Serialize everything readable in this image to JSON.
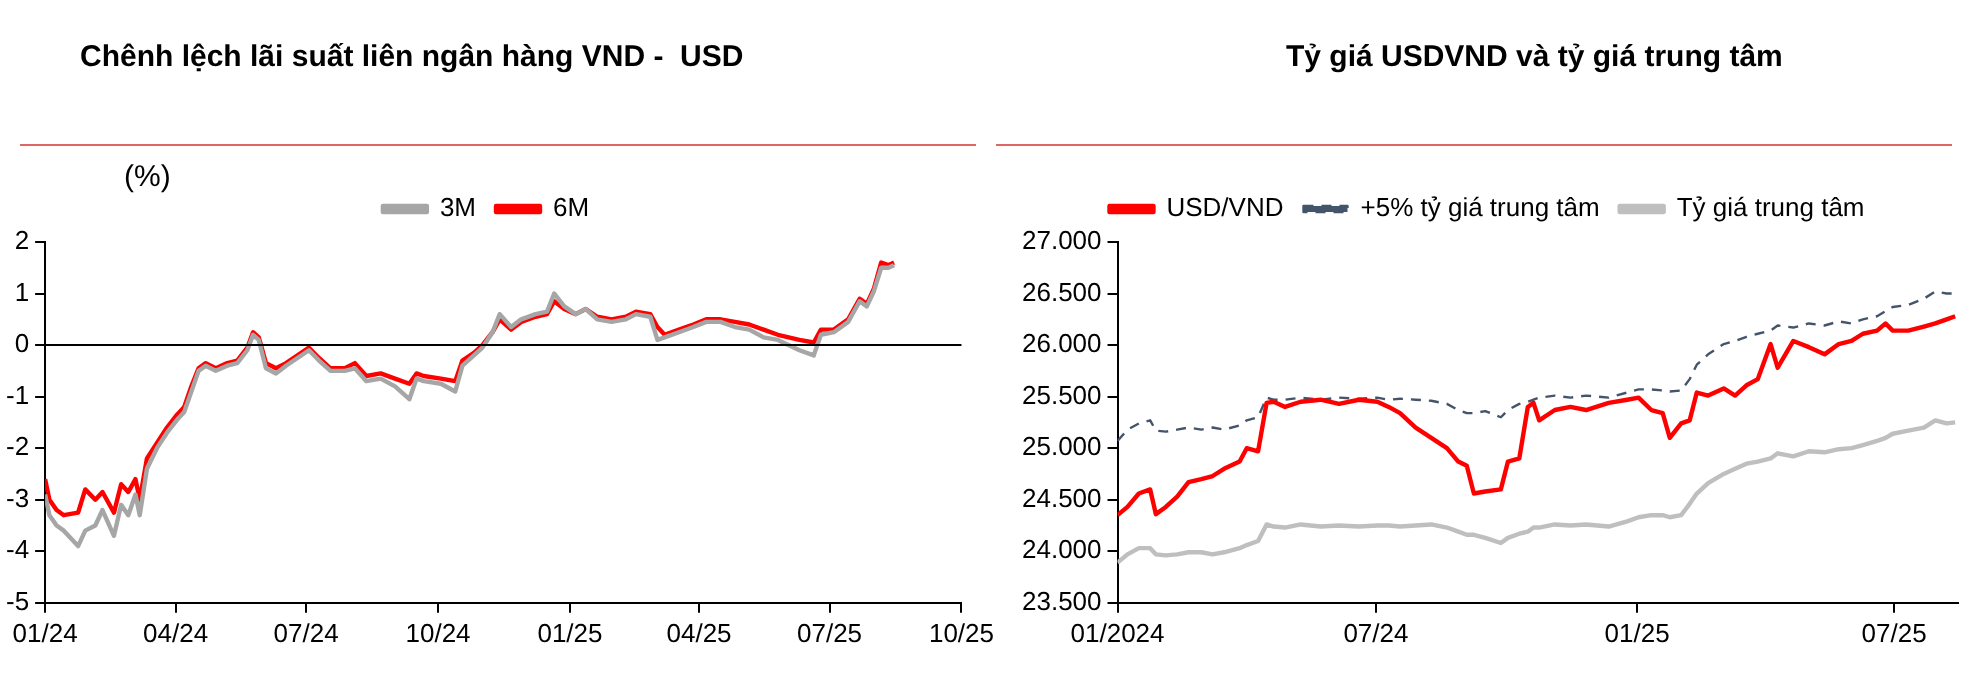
{
  "chart_data": [
    {
      "type": "line",
      "title": "Chênh lệch lãi suất liên ngân hàng VND -  USD",
      "ylabel": "(%)",
      "legend": "top",
      "grid": false,
      "xlim": [
        "2024-01-01",
        "2025-10-01"
      ],
      "xticks": [
        {
          "value": "2024-01-01",
          "label": "01/24"
        },
        {
          "value": "2024-04-01",
          "label": "04/24"
        },
        {
          "value": "2024-07-01",
          "label": "07/24"
        },
        {
          "value": "2024-10-01",
          "label": "10/24"
        },
        {
          "value": "2025-01-01",
          "label": "01/25"
        },
        {
          "value": "2025-04-01",
          "label": "04/25"
        },
        {
          "value": "2025-07-01",
          "label": "07/25"
        },
        {
          "value": "2025-10-01",
          "label": "10/25"
        }
      ],
      "ylim": [
        -5,
        2
      ],
      "yticks": [
        -5,
        -4,
        -3,
        -2,
        -1,
        0,
        1,
        2
      ],
      "ref_lines": [
        {
          "axis": "y",
          "value": 0,
          "color": "#000000"
        }
      ],
      "x": [
        "2024-01-01",
        "2024-01-04",
        "2024-01-09",
        "2024-01-14",
        "2024-01-24",
        "2024-01-29",
        "2024-02-05",
        "2024-02-10",
        "2024-02-18",
        "2024-02-23",
        "2024-02-28",
        "2024-03-04",
        "2024-03-07",
        "2024-03-12",
        "2024-03-19",
        "2024-03-26",
        "2024-04-02",
        "2024-04-07",
        "2024-04-12",
        "2024-04-17",
        "2024-04-22",
        "2024-04-29",
        "2024-05-07",
        "2024-05-14",
        "2024-05-21",
        "2024-05-25",
        "2024-05-29",
        "2024-06-03",
        "2024-06-10",
        "2024-06-17",
        "2024-06-25",
        "2024-07-03",
        "2024-07-10",
        "2024-07-18",
        "2024-07-28",
        "2024-08-04",
        "2024-08-12",
        "2024-08-22",
        "2024-09-01",
        "2024-09-11",
        "2024-09-16",
        "2024-09-21",
        "2024-10-03",
        "2024-10-13",
        "2024-10-18",
        "2024-10-26",
        "2024-11-01",
        "2024-11-08",
        "2024-11-13",
        "2024-11-21",
        "2024-11-28",
        "2024-12-08",
        "2024-12-16",
        "2024-12-21",
        "2024-12-28",
        "2025-01-05",
        "2025-01-12",
        "2025-01-20",
        "2025-01-30",
        "2025-02-09",
        "2025-02-16",
        "2025-02-26",
        "2025-03-03",
        "2025-03-08",
        "2025-03-18",
        "2025-03-28",
        "2025-04-06",
        "2025-04-16",
        "2025-04-26",
        "2025-05-06",
        "2025-05-16",
        "2025-05-26",
        "2025-06-10",
        "2025-06-20",
        "2025-06-25",
        "2025-07-04",
        "2025-07-14",
        "2025-07-22",
        "2025-07-27",
        "2025-08-01",
        "2025-08-06",
        "2025-08-11",
        "2025-08-15"
      ],
      "series": [
        {
          "name": "3M",
          "color": "#a6a6a6",
          "values": [
            -2.9,
            -3.3,
            -3.5,
            -3.6,
            -3.9,
            -3.6,
            -3.5,
            -3.2,
            -3.7,
            -3.1,
            -3.3,
            -2.9,
            -3.3,
            -2.4,
            -2.0,
            -1.7,
            -1.45,
            -1.3,
            -0.9,
            -0.5,
            -0.4,
            -0.5,
            -0.4,
            -0.35,
            -0.1,
            0.2,
            0.1,
            -0.45,
            -0.55,
            -0.4,
            -0.25,
            -0.1,
            -0.3,
            -0.5,
            -0.5,
            -0.45,
            -0.7,
            -0.65,
            -0.8,
            -1.05,
            -0.65,
            -0.7,
            -0.75,
            -0.9,
            -0.4,
            -0.2,
            -0.05,
            0.25,
            0.6,
            0.35,
            0.5,
            0.6,
            0.65,
            1.0,
            0.75,
            0.6,
            0.7,
            0.5,
            0.45,
            0.5,
            0.6,
            0.55,
            0.1,
            0.15,
            0.25,
            0.35,
            0.45,
            0.45,
            0.35,
            0.3,
            0.15,
            0.1,
            -0.1,
            -0.2,
            0.2,
            0.25,
            0.45,
            0.85,
            0.75,
            1.05,
            1.5,
            1.5,
            1.55
          ]
        },
        {
          "name": "6M",
          "color": "#ff0000",
          "values": [
            -2.6,
            -3.0,
            -3.2,
            -3.3,
            -3.25,
            -2.8,
            -3.0,
            -2.85,
            -3.25,
            -2.7,
            -2.85,
            -2.6,
            -3.0,
            -2.2,
            -1.9,
            -1.6,
            -1.35,
            -1.2,
            -0.8,
            -0.45,
            -0.35,
            -0.45,
            -0.35,
            -0.3,
            -0.05,
            0.25,
            0.15,
            -0.35,
            -0.45,
            -0.35,
            -0.2,
            -0.05,
            -0.25,
            -0.45,
            -0.45,
            -0.35,
            -0.6,
            -0.55,
            -0.65,
            -0.75,
            -0.55,
            -0.6,
            -0.65,
            -0.7,
            -0.3,
            -0.15,
            0.0,
            0.25,
            0.5,
            0.3,
            0.45,
            0.55,
            0.6,
            0.85,
            0.7,
            0.6,
            0.7,
            0.55,
            0.5,
            0.55,
            0.65,
            0.6,
            0.35,
            0.2,
            0.3,
            0.4,
            0.5,
            0.5,
            0.45,
            0.4,
            0.3,
            0.2,
            0.1,
            0.05,
            0.3,
            0.3,
            0.5,
            0.9,
            0.8,
            1.1,
            1.6,
            1.55,
            1.6
          ]
        }
      ]
    },
    {
      "type": "line",
      "title": "Tỷ giá USDVND và tỷ giá trung tâm",
      "legend": "top",
      "grid": false,
      "xlim": [
        "2024-01-01",
        "2025-08-15"
      ],
      "xticks": [
        {
          "value": "2024-01-01",
          "label": "01/2024"
        },
        {
          "value": "2024-07-01",
          "label": "07/24"
        },
        {
          "value": "2025-01-01",
          "label": "01/25"
        },
        {
          "value": "2025-07-01",
          "label": "07/25"
        }
      ],
      "ylim": [
        23500,
        27000
      ],
      "yticks": [
        {
          "value": 23500,
          "label": "23.500"
        },
        {
          "value": 24000,
          "label": "24.000"
        },
        {
          "value": 24500,
          "label": "24.500"
        },
        {
          "value": 25000,
          "label": "25.000"
        },
        {
          "value": 25500,
          "label": "25.500"
        },
        {
          "value": 26000,
          "label": "26.000"
        },
        {
          "value": 26500,
          "label": "26.500"
        },
        {
          "value": 27000,
          "label": "27.000"
        }
      ],
      "x": [
        "2024-01-01",
        "2024-01-08",
        "2024-01-16",
        "2024-01-24",
        "2024-01-28",
        "2024-02-04",
        "2024-02-12",
        "2024-02-20",
        "2024-02-29",
        "2024-03-08",
        "2024-03-16",
        "2024-03-27",
        "2024-04-01",
        "2024-04-09",
        "2024-04-15",
        "2024-04-20",
        "2024-04-28",
        "2024-05-09",
        "2024-05-23",
        "2024-06-05",
        "2024-06-19",
        "2024-07-02",
        "2024-07-10",
        "2024-07-18",
        "2024-07-29",
        "2024-08-09",
        "2024-08-20",
        "2024-08-28",
        "2024-09-03",
        "2024-09-08",
        "2024-09-16",
        "2024-09-27",
        "2024-10-02",
        "2024-10-10",
        "2024-10-16",
        "2024-10-20",
        "2024-10-24",
        "2024-11-04",
        "2024-11-15",
        "2024-11-26",
        "2024-12-12",
        "2024-12-25",
        "2025-01-02",
        "2025-01-11",
        "2025-01-19",
        "2025-01-24",
        "2025-02-01",
        "2025-02-07",
        "2025-02-12",
        "2025-02-20",
        "2025-03-03",
        "2025-03-11",
        "2025-03-19",
        "2025-03-27",
        "2025-04-05",
        "2025-04-10",
        "2025-04-21",
        "2025-05-02",
        "2025-05-13",
        "2025-05-23",
        "2025-06-01",
        "2025-06-09",
        "2025-06-19",
        "2025-06-25",
        "2025-06-30",
        "2025-07-11",
        "2025-07-22",
        "2025-07-30",
        "2025-08-07",
        "2025-08-13"
      ],
      "series": [
        {
          "name": "USD/VND",
          "color": "#ff0000",
          "values": [
            24350,
            24430,
            24560,
            24600,
            24360,
            24430,
            24530,
            24670,
            24700,
            24730,
            24800,
            24870,
            25000,
            24970,
            25440,
            25450,
            25400,
            25450,
            25470,
            25430,
            25470,
            25450,
            25400,
            25340,
            25200,
            25100,
            25000,
            24870,
            24830,
            24560,
            24580,
            24600,
            24870,
            24900,
            25400,
            25440,
            25270,
            25370,
            25400,
            25370,
            25440,
            25470,
            25490,
            25370,
            25340,
            25100,
            25240,
            25270,
            25540,
            25510,
            25580,
            25510,
            25610,
            25670,
            26010,
            25780,
            26040,
            25980,
            25910,
            26010,
            26040,
            26110,
            26140,
            26210,
            26140,
            26140,
            26180,
            26210,
            26250,
            26280
          ]
        },
        {
          "name": "+5% tỷ giá trung tâm",
          "color": "#44546a",
          "line_style": "dashed",
          "values": [
            25070,
            25180,
            25240,
            25270,
            25170,
            25160,
            25180,
            25200,
            25180,
            25200,
            25180,
            25220,
            25270,
            25300,
            25490,
            25470,
            25470,
            25490,
            25470,
            25490,
            25480,
            25490,
            25470,
            25480,
            25470,
            25460,
            25430,
            25370,
            25340,
            25340,
            25360,
            25300,
            25370,
            25430,
            25450,
            25470,
            25490,
            25510,
            25490,
            25510,
            25490,
            25540,
            25570,
            25570,
            25560,
            25550,
            25560,
            25670,
            25810,
            25910,
            26010,
            26040,
            26080,
            26110,
            26140,
            26190,
            26170,
            26210,
            26190,
            26230,
            26210,
            26250,
            26280,
            26330,
            26370,
            26390,
            26450,
            26520,
            26500,
            26500
          ]
        },
        {
          "name": "Tỷ giá trung tâm",
          "color": "#bfbfbf",
          "values": [
            23890,
            23970,
            24030,
            24030,
            23970,
            23960,
            23970,
            23990,
            23990,
            23970,
            23990,
            24030,
            24060,
            24100,
            24260,
            24240,
            24230,
            24260,
            24240,
            24250,
            24240,
            24250,
            24250,
            24240,
            24250,
            24260,
            24230,
            24190,
            24160,
            24160,
            24130,
            24080,
            24130,
            24170,
            24190,
            24230,
            24230,
            24260,
            24250,
            24260,
            24240,
            24290,
            24330,
            24350,
            24350,
            24330,
            24350,
            24460,
            24560,
            24660,
            24750,
            24800,
            24850,
            24870,
            24900,
            24950,
            24920,
            24970,
            24960,
            24990,
            25000,
            25030,
            25070,
            25100,
            25140,
            25170,
            25200,
            25270,
            25240,
            25250
          ]
        }
      ]
    }
  ]
}
